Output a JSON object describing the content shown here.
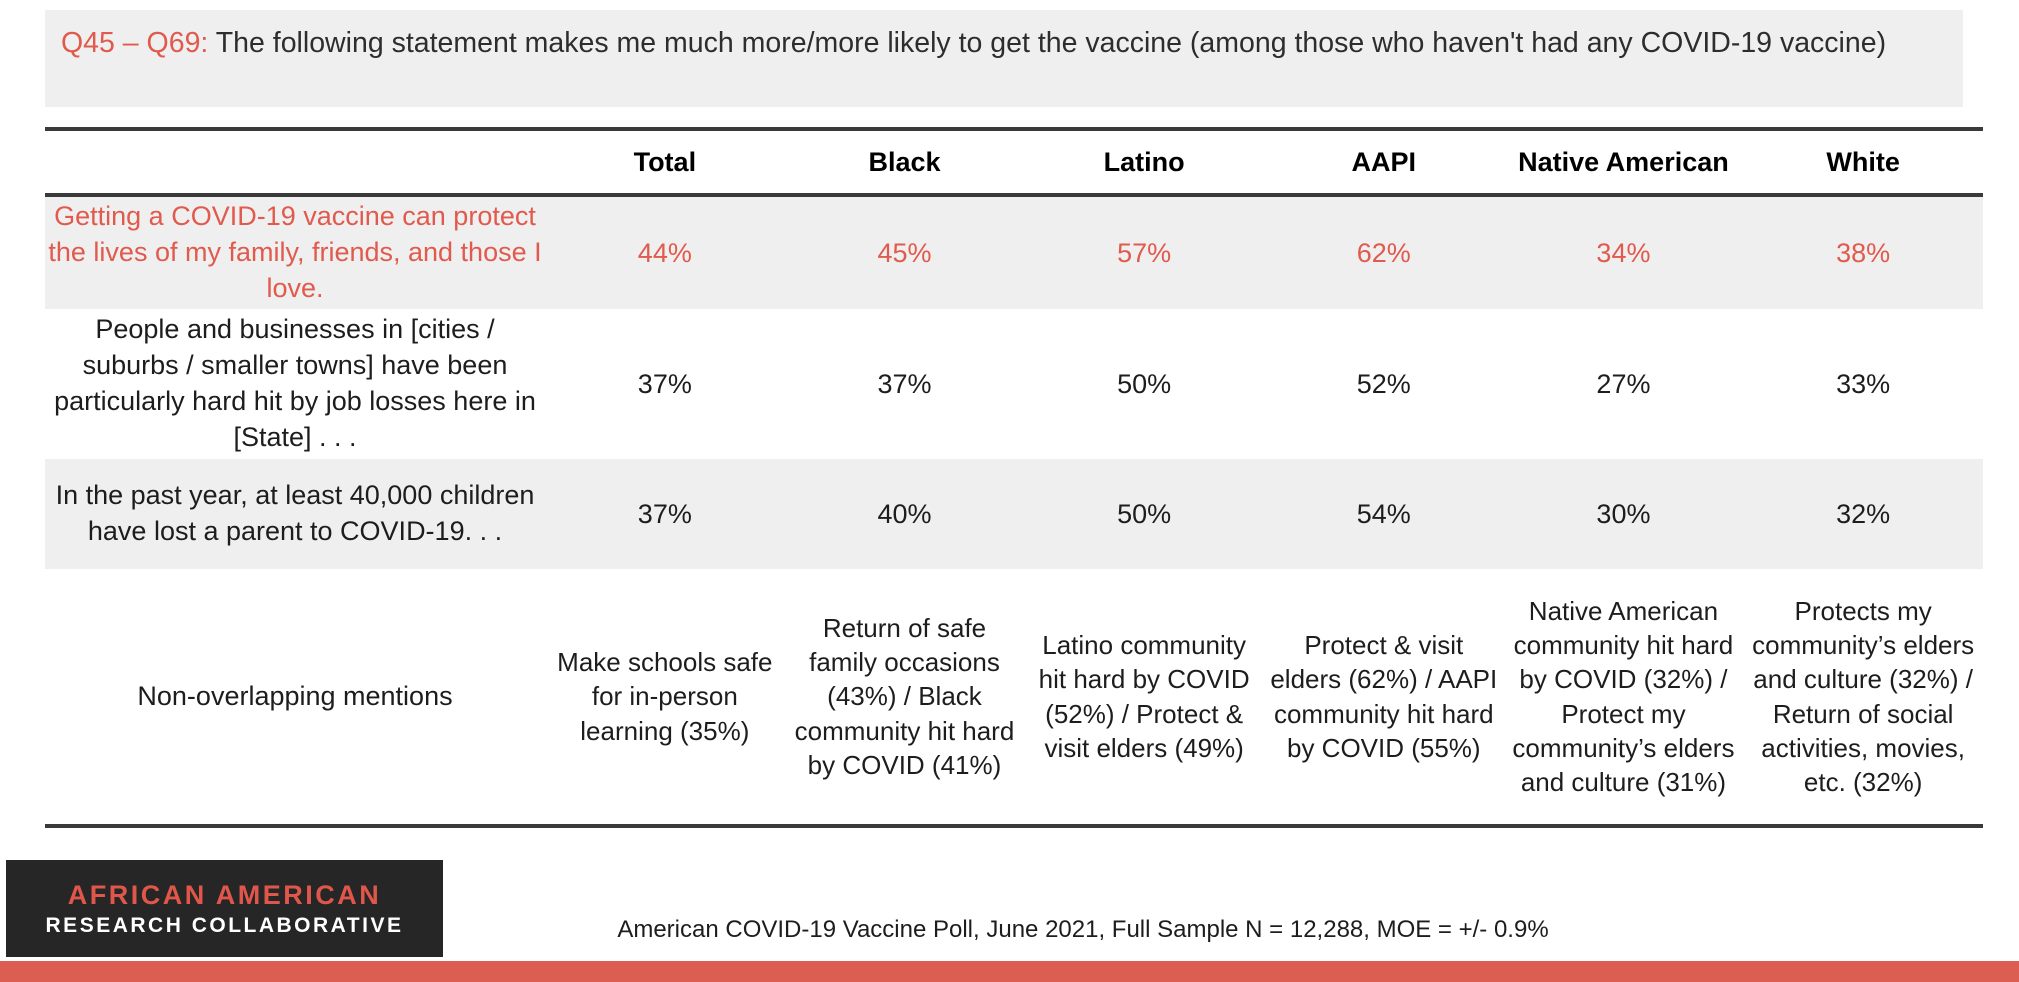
{
  "header": {
    "question_range": "Q45 – Q69:",
    "question_text": "The following statement makes me much more/more likely to get the vaccine (among those who haven't had any COVID-19 vaccine)"
  },
  "table": {
    "columns": [
      "Total",
      "Black",
      "Latino",
      "AAPI",
      "Native American",
      "White"
    ],
    "rows": [
      {
        "label": "Getting a COVID-19 vaccine can protect the lives of my family, friends, and those I love.",
        "values": [
          "44%",
          "45%",
          "57%",
          "62%",
          "34%",
          "38%"
        ]
      },
      {
        "label": "People and businesses in [cities / suburbs / smaller towns] have been particularly hard hit by job losses here in [State] . . .",
        "values": [
          "37%",
          "37%",
          "50%",
          "52%",
          "27%",
          "33%"
        ]
      },
      {
        "label": "In the past year, at least 40,000 children have lost a parent to COVID-19. . .",
        "values": [
          "37%",
          "40%",
          "50%",
          "54%",
          "30%",
          "32%"
        ]
      },
      {
        "label": "Non-overlapping mentions",
        "values": [
          "Make schools safe for in-person learning (35%)",
          "Return of safe family occasions (43%) / Black community hit hard by COVID (41%)",
          "Latino community hit hard by COVID (52%) / Protect & visit elders (49%)",
          "Protect & visit elders (62%) / AAPI community hit hard by COVID (55%)",
          "Native American community hit hard by COVID (32%) / Protect my community’s elders and culture (31%)",
          "Protects my community’s elders and culture (32%) / Return of social activities, movies, etc. (32%)"
        ]
      }
    ]
  },
  "chart_data": {
    "type": "table",
    "title": "Q45 – Q69: The following statement makes me much more/more likely to get the vaccine (among those who haven't had any COVID-19 vaccine)",
    "columns": [
      "Total",
      "Black",
      "Latino",
      "AAPI",
      "Native American",
      "White"
    ],
    "series": [
      {
        "name": "Getting a COVID-19 vaccine can protect the lives of my family, friends, and those I love.",
        "values_pct": [
          44,
          45,
          57,
          62,
          34,
          38
        ]
      },
      {
        "name": "People and businesses in [cities / suburbs / smaller towns] have been particularly hard hit by job losses here in [State] . . .",
        "values_pct": [
          37,
          37,
          50,
          52,
          27,
          33
        ]
      },
      {
        "name": "In the past year, at least 40,000 children have lost a parent to COVID-19. . .",
        "values_pct": [
          37,
          40,
          50,
          54,
          30,
          32
        ]
      }
    ]
  },
  "footer": {
    "logo_line1": "AFRICAN AMERICAN",
    "logo_line2": "RESEARCH COLLABORATIVE",
    "source": "American COVID-19 Vaccine Poll, June 2021, Full Sample N = 12,288, MOE = +/- 0.9%"
  },
  "colors": {
    "accent_red_text": "#E05A4D",
    "row_highlight_gray": "#F0EFEF",
    "logo_background": "#262626",
    "logo_red": "#E0564A",
    "bottom_bar_red": "#DC5E52",
    "table_border": "#3A3A3A"
  }
}
